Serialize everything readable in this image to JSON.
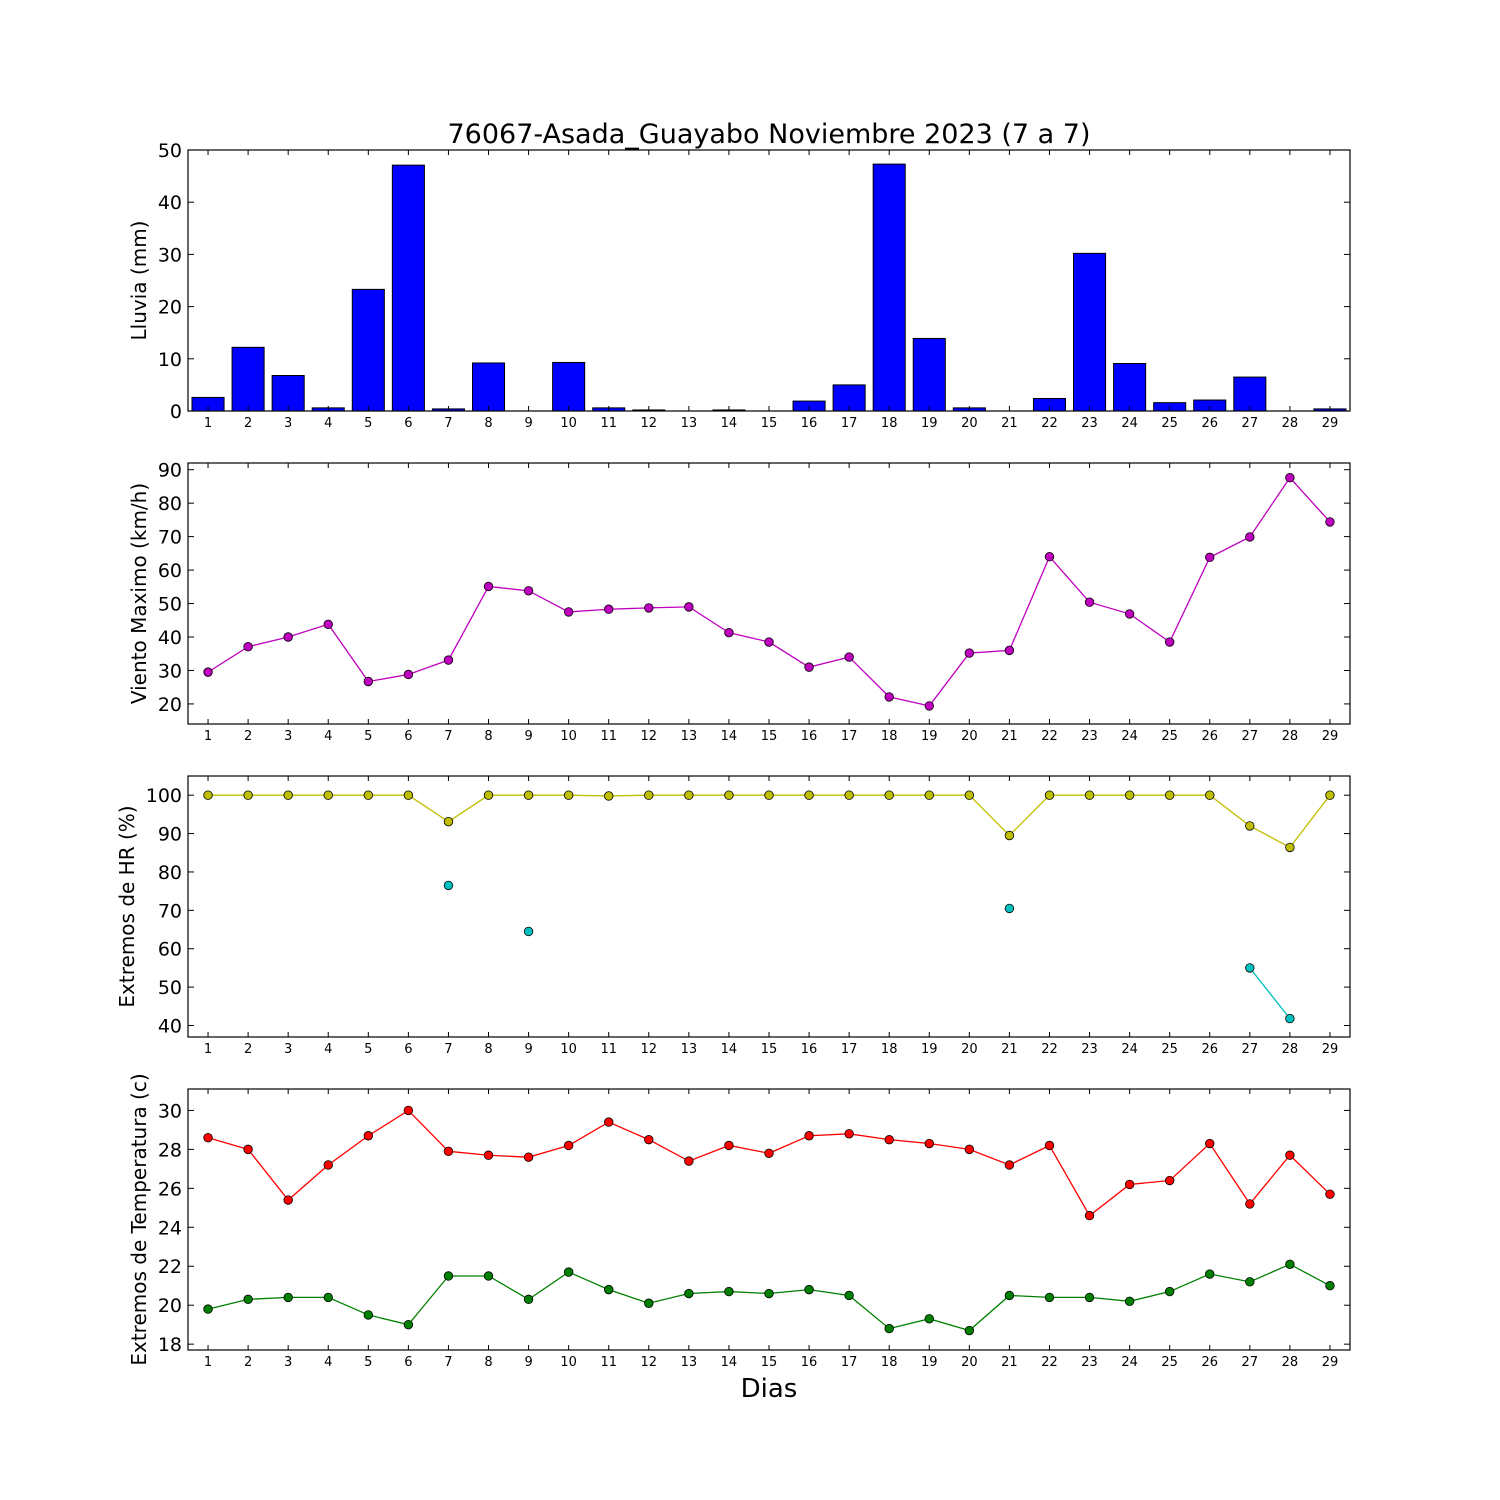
{
  "title": "76067-Asada_Guayabo Noviembre 2023  (7 a 7)",
  "xlabel": "Dias",
  "chart_data": [
    {
      "type": "bar",
      "ylabel": "Lluvia (mm)",
      "ylim": [
        0,
        50
      ],
      "yticks": [
        0,
        10,
        20,
        30,
        40,
        50
      ],
      "x": [
        1,
        2,
        3,
        4,
        5,
        6,
        7,
        8,
        9,
        10,
        11,
        12,
        13,
        14,
        15,
        16,
        17,
        18,
        19,
        20,
        21,
        22,
        23,
        24,
        25,
        26,
        27,
        28,
        29
      ],
      "series": [
        {
          "values": [
            2.6,
            12.2,
            6.8,
            0.6,
            23.3,
            47.1,
            0.4,
            9.2,
            0.0,
            9.3,
            0.6,
            0.2,
            0.0,
            0.2,
            0.0,
            1.9,
            5.0,
            47.3,
            13.9,
            0.6,
            0.0,
            2.4,
            30.2,
            9.1,
            1.6,
            2.1,
            6.5,
            0.0,
            0.4
          ],
          "color": "#0000ff"
        }
      ]
    },
    {
      "type": "line",
      "ylabel": "Viento Maximo (km/h)",
      "ylim": [
        14,
        92
      ],
      "yticks": [
        20,
        30,
        40,
        50,
        60,
        70,
        80,
        90
      ],
      "x": [
        1,
        2,
        3,
        4,
        5,
        6,
        7,
        8,
        9,
        10,
        11,
        12,
        13,
        14,
        15,
        16,
        17,
        18,
        19,
        20,
        21,
        22,
        23,
        24,
        25,
        26,
        27,
        28,
        29
      ],
      "series": [
        {
          "values": [
            29.5,
            37.1,
            40.0,
            43.8,
            26.7,
            28.8,
            33.1,
            55.1,
            53.8,
            47.5,
            48.3,
            48.7,
            49.0,
            41.3,
            38.5,
            31.0,
            34.0,
            22.1,
            19.4,
            35.2,
            36.0,
            64.0,
            50.4,
            46.9,
            38.5,
            63.8,
            69.9,
            87.6,
            74.4
          ],
          "color": "#bf00bf"
        }
      ]
    },
    {
      "type": "line",
      "ylabel": "Extremos de HR (%)",
      "ylim": [
        37,
        105
      ],
      "yticks": [
        40,
        50,
        60,
        70,
        80,
        90,
        100
      ],
      "x": [
        1,
        2,
        3,
        4,
        5,
        6,
        7,
        8,
        9,
        10,
        11,
        12,
        13,
        14,
        15,
        16,
        17,
        18,
        19,
        20,
        21,
        22,
        23,
        24,
        25,
        26,
        27,
        28,
        29
      ],
      "series": [
        {
          "values": [
            100,
            100,
            100,
            100,
            100,
            100,
            93.1,
            100,
            100,
            100,
            99.8,
            100,
            100,
            100,
            100,
            100,
            100,
            100,
            100,
            100,
            89.5,
            100,
            100,
            100,
            100,
            100,
            92.0,
            86.4,
            100
          ],
          "color": "#bfbf00"
        },
        {
          "values": [
            null,
            null,
            null,
            null,
            null,
            null,
            76.5,
            null,
            64.5,
            null,
            null,
            null,
            null,
            null,
            null,
            null,
            null,
            null,
            null,
            null,
            70.5,
            null,
            null,
            null,
            null,
            null,
            55.0,
            41.8,
            null
          ],
          "color": "#00bfbf"
        }
      ]
    },
    {
      "type": "line",
      "ylabel": "Extremos de Temperatura (c)",
      "ylim": [
        17.7,
        31.1
      ],
      "yticks": [
        18,
        20,
        22,
        24,
        26,
        28,
        30
      ],
      "x": [
        1,
        2,
        3,
        4,
        5,
        6,
        7,
        8,
        9,
        10,
        11,
        12,
        13,
        14,
        15,
        16,
        17,
        18,
        19,
        20,
        21,
        22,
        23,
        24,
        25,
        26,
        27,
        28,
        29
      ],
      "series": [
        {
          "values": [
            28.6,
            28.0,
            25.4,
            27.2,
            28.7,
            30.0,
            27.9,
            27.7,
            27.6,
            28.2,
            29.4,
            28.5,
            27.4,
            28.2,
            27.8,
            28.7,
            28.8,
            28.5,
            28.3,
            28.0,
            27.2,
            28.2,
            24.6,
            26.2,
            26.4,
            28.3,
            25.2,
            27.7,
            25.7
          ],
          "color": "#ff0000"
        },
        {
          "values": [
            19.8,
            20.3,
            20.4,
            20.4,
            19.5,
            19.0,
            21.5,
            21.5,
            20.3,
            21.7,
            20.8,
            20.1,
            20.6,
            20.7,
            20.6,
            20.8,
            20.5,
            18.8,
            19.3,
            18.7,
            20.5,
            20.4,
            20.4,
            20.2,
            20.7,
            21.6,
            21.2,
            22.1,
            21.0
          ],
          "color": "#008000"
        }
      ]
    }
  ]
}
